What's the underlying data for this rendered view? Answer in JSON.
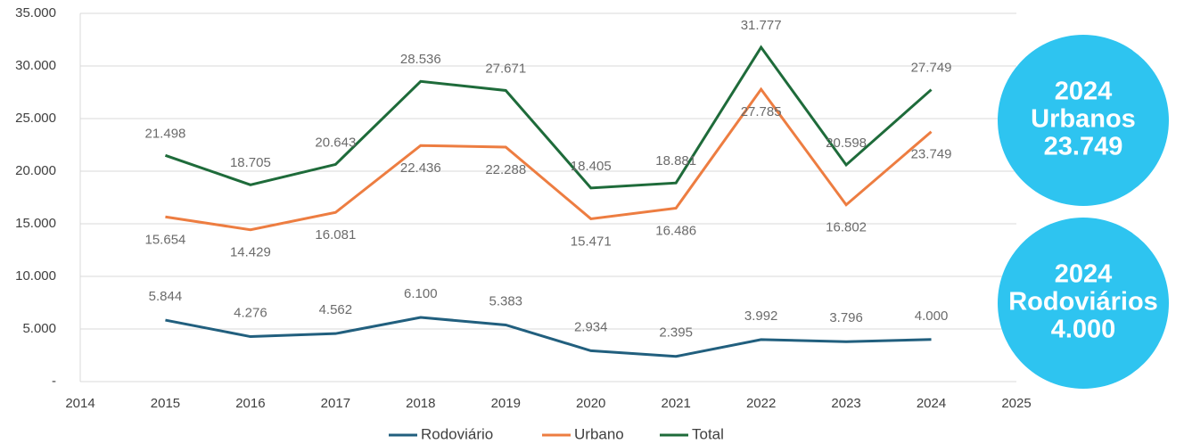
{
  "chart_data": {
    "type": "line",
    "x": [
      2015,
      2016,
      2017,
      2018,
      2019,
      2020,
      2021,
      2022,
      2023,
      2024
    ],
    "series": [
      {
        "name": "Rodoviário",
        "color": "#215f7e",
        "values": [
          5844,
          4276,
          4562,
          6100,
          5383,
          2934,
          2395,
          3992,
          3796,
          4000
        ],
        "value_labels": [
          "5.844",
          "4.276",
          "4.562",
          "6.100",
          "5.383",
          "2.934",
          "2.395",
          "3.992",
          "3.796",
          "4.000"
        ]
      },
      {
        "name": "Urbano",
        "color": "#ed7d41",
        "values": [
          15654,
          14429,
          16081,
          22436,
          22288,
          15471,
          16486,
          27785,
          16802,
          23749
        ],
        "value_labels": [
          "15.654",
          "14.429",
          "16.081",
          "22.436",
          "22.288",
          "15.471",
          "16.486",
          "27.785",
          "16.802",
          "23.749"
        ]
      },
      {
        "name": "Total",
        "color": "#1e6b3a",
        "values": [
          21498,
          18705,
          20643,
          28536,
          27671,
          18405,
          18881,
          31777,
          20598,
          27749
        ],
        "value_labels": [
          "21.498",
          "18.705",
          "20.643",
          "28.536",
          "27.671",
          "18.405",
          "18.881",
          "31.777",
          "20.598",
          "27.749"
        ]
      }
    ],
    "xlim": [
      2014,
      2025
    ],
    "xticks": [
      2014,
      2015,
      2016,
      2017,
      2018,
      2019,
      2020,
      2021,
      2022,
      2023,
      2024,
      2025
    ],
    "ylim": [
      0,
      35000
    ],
    "yticks": [
      {
        "value": 0,
        "label": "-"
      },
      {
        "value": 5000,
        "label": "5.000"
      },
      {
        "value": 10000,
        "label": "10.000"
      },
      {
        "value": 15000,
        "label": "15.000"
      },
      {
        "value": 20000,
        "label": "20.000"
      },
      {
        "value": 25000,
        "label": "25.000"
      },
      {
        "value": 30000,
        "label": "30.000"
      },
      {
        "value": 35000,
        "label": "35.000"
      }
    ],
    "grid": true,
    "legend": "bottom",
    "annotations": [
      {
        "color": "#2ec4f0",
        "lines": [
          "2024",
          "Urbanos",
          "23.749"
        ]
      },
      {
        "color": "#2ec4f0",
        "lines": [
          "2024",
          "Rodoviários",
          "4.000"
        ]
      }
    ]
  }
}
